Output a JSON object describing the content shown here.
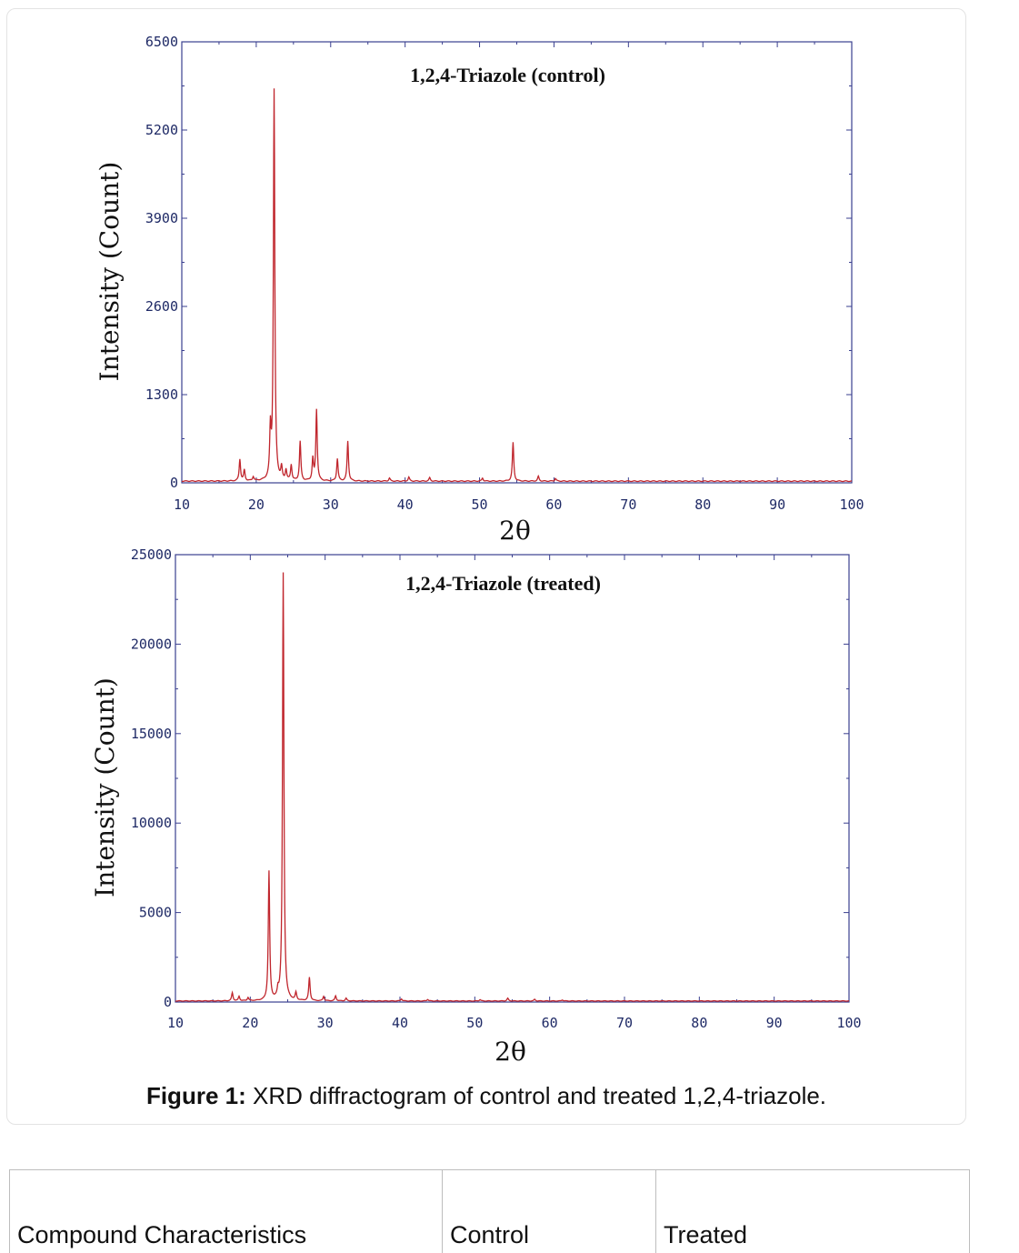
{
  "figure": {
    "caption_label": "Figure 1:",
    "caption_text": " XRD diffractogram of control and treated 1,2,4-triazole."
  },
  "chart_data": [
    {
      "type": "line",
      "title": "1,2,4-Triazole (control)",
      "xlabel": "2θ",
      "ylabel": "Intensity (Count)",
      "xlim": [
        10,
        100
      ],
      "ylim": [
        0,
        6500
      ],
      "xticks": [
        "10",
        "20",
        "30",
        "40",
        "50",
        "60",
        "70",
        "80",
        "90",
        "100"
      ],
      "yticks": [
        "0",
        "1300",
        "2600",
        "3900",
        "5200",
        "6500"
      ],
      "line_color": "#c0262d",
      "axis_color": "#3a3f8f",
      "baseline": 25,
      "peaks": [
        {
          "x": 17.8,
          "y": 320
        },
        {
          "x": 18.4,
          "y": 160
        },
        {
          "x": 19.6,
          "y": 60
        },
        {
          "x": 21.9,
          "y": 700
        },
        {
          "x": 22.4,
          "y": 5750
        },
        {
          "x": 23.4,
          "y": 180
        },
        {
          "x": 24.0,
          "y": 150
        },
        {
          "x": 24.7,
          "y": 230
        },
        {
          "x": 25.9,
          "y": 580
        },
        {
          "x": 27.6,
          "y": 320
        },
        {
          "x": 28.1,
          "y": 1050
        },
        {
          "x": 30.9,
          "y": 330
        },
        {
          "x": 32.3,
          "y": 590
        },
        {
          "x": 37.9,
          "y": 45
        },
        {
          "x": 40.5,
          "y": 60
        },
        {
          "x": 43.3,
          "y": 50
        },
        {
          "x": 50.4,
          "y": 45
        },
        {
          "x": 54.5,
          "y": 570
        },
        {
          "x": 57.9,
          "y": 70
        },
        {
          "x": 60.2,
          "y": 40
        }
      ]
    },
    {
      "type": "line",
      "title": "1,2,4-Triazole (treated)",
      "xlabel": "2θ",
      "ylabel": "Intensity (Count)",
      "xlim": [
        10,
        100
      ],
      "ylim": [
        0,
        25000
      ],
      "xticks": [
        "10",
        "20",
        "30",
        "40",
        "50",
        "60",
        "70",
        "80",
        "90",
        "100"
      ],
      "yticks": [
        "0",
        "5000",
        "10000",
        "15000",
        "20000",
        "25000"
      ],
      "line_color": "#c0262d",
      "axis_color": "#3a3f8f",
      "baseline": 60,
      "peaks": [
        {
          "x": 17.6,
          "y": 450
        },
        {
          "x": 18.5,
          "y": 250
        },
        {
          "x": 19.7,
          "y": 180
        },
        {
          "x": 22.5,
          "y": 7200
        },
        {
          "x": 23.7,
          "y": 400
        },
        {
          "x": 24.4,
          "y": 23900
        },
        {
          "x": 26.1,
          "y": 420
        },
        {
          "x": 27.9,
          "y": 1300
        },
        {
          "x": 29.8,
          "y": 250
        },
        {
          "x": 31.4,
          "y": 280
        },
        {
          "x": 32.8,
          "y": 150
        },
        {
          "x": 40.2,
          "y": 120
        },
        {
          "x": 43.7,
          "y": 90
        },
        {
          "x": 50.7,
          "y": 80
        },
        {
          "x": 54.4,
          "y": 150
        },
        {
          "x": 58.0,
          "y": 90
        },
        {
          "x": 61.7,
          "y": 60
        }
      ]
    }
  ],
  "table": {
    "headers": [
      "Compound Characteristics",
      "Control",
      "Treated"
    ]
  }
}
